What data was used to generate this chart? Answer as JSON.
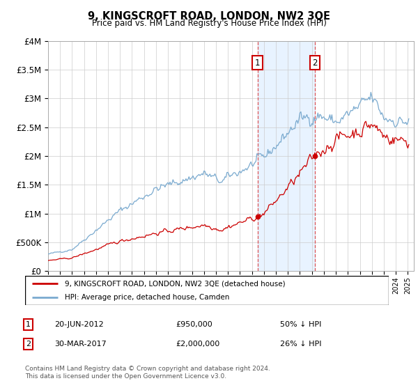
{
  "title": "9, KINGSCROFT ROAD, LONDON, NW2 3QE",
  "subtitle": "Price paid vs. HM Land Registry's House Price Index (HPI)",
  "legend_line1": "9, KINGSCROFT ROAD, LONDON, NW2 3QE (detached house)",
  "legend_line2": "HPI: Average price, detached house, Camden",
  "annotation1_label": "1",
  "annotation1_date": "20-JUN-2012",
  "annotation1_price": "£950,000",
  "annotation1_hpi": "50% ↓ HPI",
  "annotation1_year": 2012.47,
  "annotation1_value": 950000,
  "annotation2_label": "2",
  "annotation2_date": "30-MAR-2017",
  "annotation2_price": "£2,000,000",
  "annotation2_hpi": "26% ↓ HPI",
  "annotation2_year": 2017.25,
  "annotation2_value": 2000000,
  "hpi_color": "#7aaacf",
  "price_color": "#cc0000",
  "shade_color": "#ddeeff",
  "annotation_box_color": "#cc0000",
  "footer": "Contains HM Land Registry data © Crown copyright and database right 2024.\nThis data is licensed under the Open Government Licence v3.0.",
  "ylim": [
    0,
    4000000
  ],
  "yticks": [
    0,
    500000,
    1000000,
    1500000,
    2000000,
    2500000,
    3000000,
    3500000,
    4000000
  ],
  "ytick_labels": [
    "£0",
    "£500K",
    "£1M",
    "£1.5M",
    "£2M",
    "£2.5M",
    "£3M",
    "£3.5M",
    "£4M"
  ],
  "xmin": 1995,
  "xmax": 2025.5
}
